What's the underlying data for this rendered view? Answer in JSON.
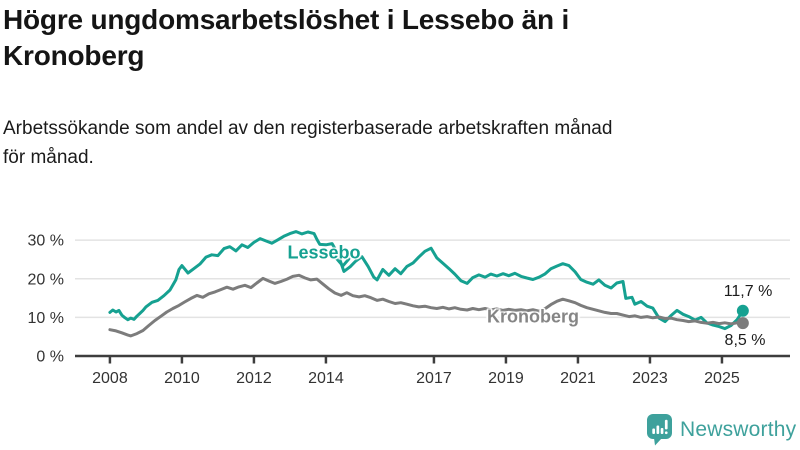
{
  "header": {
    "title": "Högre ungdomsarbetslöshet i Lessebo än i\nKronoberg",
    "subtitle": "Arbetssökande som andel av den registerbaserade arbetskraften månad\nför månad."
  },
  "chart_data": {
    "type": "line",
    "title": "Högre ungdomsarbetslöshet i Lessebo än i Kronoberg",
    "subtitle": "Arbetssökande som andel av den registerbaserade arbetskraften månad för månad.",
    "unit": "%",
    "x_unit": "year-month (decimal years)",
    "xlim": [
      2007.03,
      2026.89
    ],
    "ylim": [
      0,
      37.8
    ],
    "grid": "horizontal",
    "legend_position": "inline-labels",
    "x_ticks": [
      2008,
      2010,
      2012,
      2014,
      2017,
      2019,
      2021,
      2023,
      2025
    ],
    "y_ticks": [
      {
        "value": 0,
        "label": "0 %"
      },
      {
        "value": 10,
        "label": "10 %"
      },
      {
        "value": 20,
        "label": "20 %"
      },
      {
        "value": 30,
        "label": "30 %"
      }
    ],
    "annotation_pointer": {
      "series": "Lessebo",
      "x": 2014.47,
      "v_tip": 22.8
    },
    "series": [
      {
        "name": "Lessebo",
        "color": "#16a191",
        "end_label": "11,7 %",
        "end_value": 11.7,
        "points": [
          [
            2008,
            11.3
          ],
          [
            2008.08,
            11.9
          ],
          [
            2008.17,
            11.4
          ],
          [
            2008.25,
            11.8
          ],
          [
            2008.33,
            10.6
          ],
          [
            2008.42,
            9.9
          ],
          [
            2008.5,
            9.4
          ],
          [
            2008.58,
            9.8
          ],
          [
            2008.67,
            9.5
          ],
          [
            2008.75,
            10.3
          ],
          [
            2008.83,
            11
          ],
          [
            2008.92,
            11.8
          ],
          [
            2009,
            12.7
          ],
          [
            2009.17,
            13.9
          ],
          [
            2009.33,
            14.4
          ],
          [
            2009.5,
            15.6
          ],
          [
            2009.67,
            17.1
          ],
          [
            2009.83,
            19.7
          ],
          [
            2009.92,
            22.4
          ],
          [
            2010,
            23.4
          ],
          [
            2010.17,
            21.5
          ],
          [
            2010.33,
            22.6
          ],
          [
            2010.5,
            23.8
          ],
          [
            2010.67,
            25.6
          ],
          [
            2010.83,
            26.2
          ],
          [
            2011,
            26
          ],
          [
            2011.17,
            27.8
          ],
          [
            2011.33,
            28.3
          ],
          [
            2011.5,
            27.2
          ],
          [
            2011.67,
            28.8
          ],
          [
            2011.83,
            28.1
          ],
          [
            2012,
            29.4
          ],
          [
            2012.17,
            30.4
          ],
          [
            2012.33,
            29.8
          ],
          [
            2012.5,
            29.2
          ],
          [
            2012.67,
            30.1
          ],
          [
            2012.83,
            31
          ],
          [
            2013,
            31.7
          ],
          [
            2013.17,
            32.2
          ],
          [
            2013.33,
            31.6
          ],
          [
            2013.5,
            32.1
          ],
          [
            2013.67,
            31.7
          ],
          [
            2013.75,
            30.2
          ],
          [
            2013.83,
            28.9
          ],
          [
            2014,
            28.8
          ],
          [
            2014.17,
            29.1
          ],
          [
            2014.33,
            26.5
          ],
          [
            2014.5,
            21.9
          ],
          [
            2014.67,
            23.1
          ],
          [
            2014.83,
            24.6
          ],
          [
            2015,
            25.7
          ],
          [
            2015.17,
            23.2
          ],
          [
            2015.33,
            20.4
          ],
          [
            2015.42,
            19.7
          ],
          [
            2015.58,
            22.4
          ],
          [
            2015.75,
            20.9
          ],
          [
            2015.92,
            22.6
          ],
          [
            2016.08,
            21.3
          ],
          [
            2016.25,
            23.2
          ],
          [
            2016.42,
            24.1
          ],
          [
            2016.58,
            25.6
          ],
          [
            2016.75,
            27.1
          ],
          [
            2016.92,
            27.9
          ],
          [
            2017.08,
            25.4
          ],
          [
            2017.25,
            24
          ],
          [
            2017.42,
            22.6
          ],
          [
            2017.58,
            21.2
          ],
          [
            2017.75,
            19.5
          ],
          [
            2017.92,
            18.8
          ],
          [
            2018.08,
            20.3
          ],
          [
            2018.25,
            21
          ],
          [
            2018.42,
            20.4
          ],
          [
            2018.58,
            21.2
          ],
          [
            2018.75,
            20.7
          ],
          [
            2018.92,
            21.3
          ],
          [
            2019.08,
            20.8
          ],
          [
            2019.25,
            21.4
          ],
          [
            2019.42,
            20.6
          ],
          [
            2019.58,
            20.2
          ],
          [
            2019.75,
            19.8
          ],
          [
            2019.92,
            20.4
          ],
          [
            2020.08,
            21.2
          ],
          [
            2020.25,
            22.6
          ],
          [
            2020.42,
            23.3
          ],
          [
            2020.58,
            23.9
          ],
          [
            2020.75,
            23.4
          ],
          [
            2020.92,
            21.8
          ],
          [
            2021.08,
            19.8
          ],
          [
            2021.25,
            19.1
          ],
          [
            2021.42,
            18.6
          ],
          [
            2021.58,
            19.7
          ],
          [
            2021.75,
            18.3
          ],
          [
            2021.92,
            17.6
          ],
          [
            2022.08,
            18.9
          ],
          [
            2022.25,
            19.3
          ],
          [
            2022.33,
            14.9
          ],
          [
            2022.5,
            15.2
          ],
          [
            2022.58,
            13.4
          ],
          [
            2022.75,
            14.1
          ],
          [
            2022.92,
            12.9
          ],
          [
            2023.08,
            12.4
          ],
          [
            2023.25,
            9.8
          ],
          [
            2023.42,
            8.9
          ],
          [
            2023.58,
            10.4
          ],
          [
            2023.75,
            11.8
          ],
          [
            2023.92,
            10.8
          ],
          [
            2024.08,
            10.2
          ],
          [
            2024.25,
            9.3
          ],
          [
            2024.42,
            10
          ],
          [
            2024.58,
            8.6
          ],
          [
            2024.75,
            8
          ],
          [
            2024.92,
            7.6
          ],
          [
            2025.08,
            7.1
          ],
          [
            2025.25,
            7.9
          ],
          [
            2025.42,
            9.4
          ],
          [
            2025.58,
            11.7
          ]
        ]
      },
      {
        "name": "Kronoberg",
        "color": "#7c7c7c",
        "end_label": "8,5 %",
        "end_value": 8.5,
        "points": [
          [
            2008,
            6.8
          ],
          [
            2008.17,
            6.5
          ],
          [
            2008.33,
            6
          ],
          [
            2008.5,
            5.4
          ],
          [
            2008.58,
            5.2
          ],
          [
            2008.75,
            5.8
          ],
          [
            2008.92,
            6.6
          ],
          [
            2009.08,
            7.9
          ],
          [
            2009.25,
            9.2
          ],
          [
            2009.42,
            10.3
          ],
          [
            2009.58,
            11.4
          ],
          [
            2009.75,
            12.3
          ],
          [
            2009.92,
            13.1
          ],
          [
            2010.08,
            14
          ],
          [
            2010.25,
            14.9
          ],
          [
            2010.42,
            15.7
          ],
          [
            2010.58,
            15.2
          ],
          [
            2010.75,
            16.1
          ],
          [
            2010.92,
            16.6
          ],
          [
            2011.08,
            17.2
          ],
          [
            2011.25,
            17.8
          ],
          [
            2011.42,
            17.3
          ],
          [
            2011.58,
            17.9
          ],
          [
            2011.75,
            18.3
          ],
          [
            2011.92,
            17.7
          ],
          [
            2012.08,
            18.9
          ],
          [
            2012.25,
            20.1
          ],
          [
            2012.42,
            19.4
          ],
          [
            2012.58,
            18.8
          ],
          [
            2012.75,
            19.3
          ],
          [
            2012.92,
            19.9
          ],
          [
            2013.08,
            20.6
          ],
          [
            2013.25,
            20.9
          ],
          [
            2013.42,
            20.2
          ],
          [
            2013.58,
            19.7
          ],
          [
            2013.75,
            19.9
          ],
          [
            2013.92,
            18.6
          ],
          [
            2014.08,
            17.4
          ],
          [
            2014.25,
            16.3
          ],
          [
            2014.42,
            15.7
          ],
          [
            2014.58,
            16.4
          ],
          [
            2014.75,
            15.6
          ],
          [
            2014.92,
            15.3
          ],
          [
            2015.08,
            15.6
          ],
          [
            2015.25,
            15.1
          ],
          [
            2015.42,
            14.4
          ],
          [
            2015.58,
            14.7
          ],
          [
            2015.75,
            14.1
          ],
          [
            2015.92,
            13.6
          ],
          [
            2016.08,
            13.8
          ],
          [
            2016.25,
            13.4
          ],
          [
            2016.42,
            13
          ],
          [
            2016.58,
            12.7
          ],
          [
            2016.75,
            12.9
          ],
          [
            2016.92,
            12.5
          ],
          [
            2017.08,
            12.3
          ],
          [
            2017.25,
            12.6
          ],
          [
            2017.42,
            12.2
          ],
          [
            2017.58,
            12.5
          ],
          [
            2017.75,
            12.1
          ],
          [
            2017.92,
            11.9
          ],
          [
            2018.08,
            12.3
          ],
          [
            2018.25,
            12
          ],
          [
            2018.42,
            12.3
          ],
          [
            2018.58,
            11.9
          ],
          [
            2018.75,
            12.2
          ],
          [
            2018.92,
            11.8
          ],
          [
            2019.08,
            12.1
          ],
          [
            2019.25,
            11.8
          ],
          [
            2019.42,
            12
          ],
          [
            2019.58,
            11.7
          ],
          [
            2019.75,
            12
          ],
          [
            2019.92,
            11.6
          ],
          [
            2020.08,
            12.2
          ],
          [
            2020.25,
            13.3
          ],
          [
            2020.42,
            14.2
          ],
          [
            2020.58,
            14.7
          ],
          [
            2020.75,
            14.3
          ],
          [
            2020.92,
            13.8
          ],
          [
            2021.08,
            13.1
          ],
          [
            2021.25,
            12.5
          ],
          [
            2021.42,
            12.1
          ],
          [
            2021.58,
            11.7
          ],
          [
            2021.75,
            11.3
          ],
          [
            2021.92,
            11
          ],
          [
            2022.08,
            11
          ],
          [
            2022.25,
            10.6
          ],
          [
            2022.42,
            10.2
          ],
          [
            2022.58,
            10.4
          ],
          [
            2022.75,
            10
          ],
          [
            2022.92,
            10.2
          ],
          [
            2023.08,
            9.9
          ],
          [
            2023.25,
            10.1
          ],
          [
            2023.42,
            9.7
          ],
          [
            2023.58,
            9.8
          ],
          [
            2023.75,
            9.4
          ],
          [
            2023.92,
            9.2
          ],
          [
            2024.08,
            8.9
          ],
          [
            2024.25,
            9.1
          ],
          [
            2024.42,
            8.7
          ],
          [
            2024.58,
            8.5
          ],
          [
            2024.75,
            8.7
          ],
          [
            2024.92,
            8.4
          ],
          [
            2025.08,
            8.6
          ],
          [
            2025.25,
            8.3
          ],
          [
            2025.42,
            8.6
          ],
          [
            2025.58,
            8.5
          ]
        ]
      }
    ]
  },
  "footer": {
    "brand": "Newsworthy"
  },
  "colors": {
    "accent_teal": "#16a191",
    "line_gray": "#7c7c7c",
    "logo_teal": "#3ea19c",
    "gridline": "#e3e3e3",
    "axis": "#3d3d3d",
    "text": "#1b1b1b"
  }
}
